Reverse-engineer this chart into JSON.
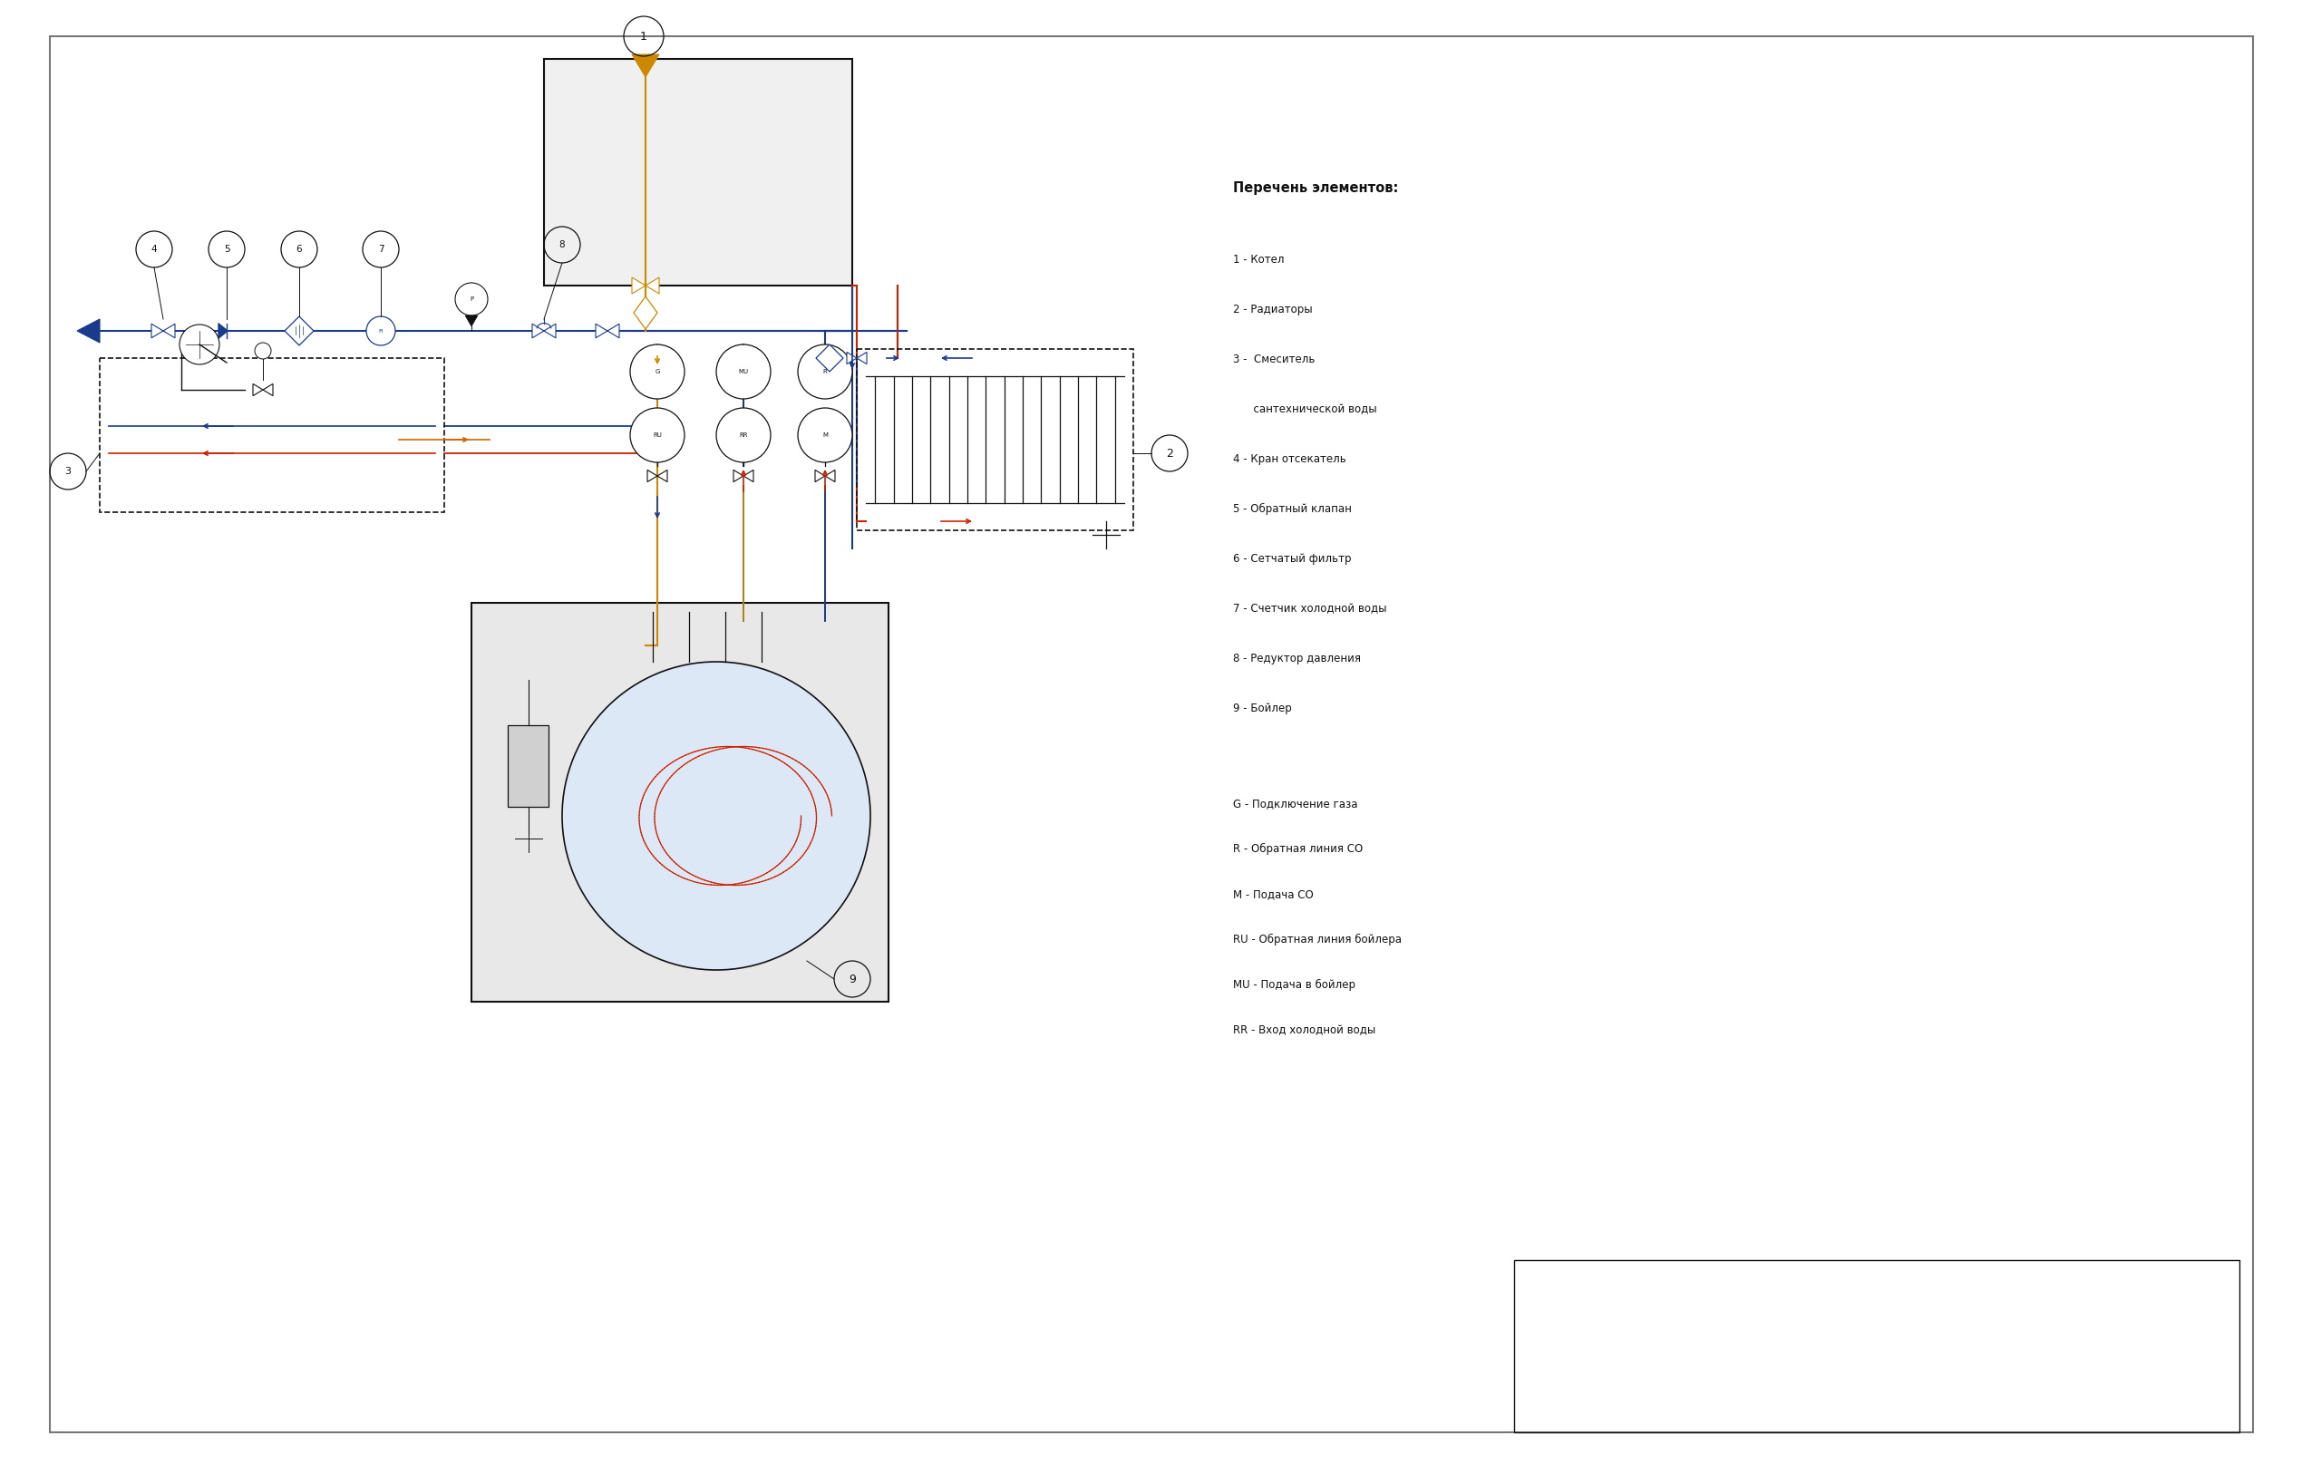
{
  "bg_color": "#ffffff",
  "legend_title": "Перечень элементов:",
  "legend_items": [
    "1 - Котел",
    "2 - Радиаторы",
    "3 -  Смеситель",
    "      сантехнической воды",
    "4 - Кран отсекатель",
    "5 - Обратный клапан",
    "6 - Сетчатый фильтр",
    "7 - Счетчик холодной воды",
    "8 - Редуктор давления",
    "9 - Бойлер"
  ],
  "legend2_items": [
    "G - Подключение газа",
    "R - Обратная линия СО",
    "M - Подача СО",
    "RU - Обратная линия бойлера",
    "MU - Подача в бойлер",
    "RR - Вход холодной воды"
  ],
  "colors": {
    "blue": "#1a3a8c",
    "red": "#cc2200",
    "orange": "#cc8800",
    "dark": "#111111",
    "gray_fill": "#f0f0f0",
    "boiler9_fill": "#e8e8e8",
    "tank_fill": "#dce8f5"
  }
}
